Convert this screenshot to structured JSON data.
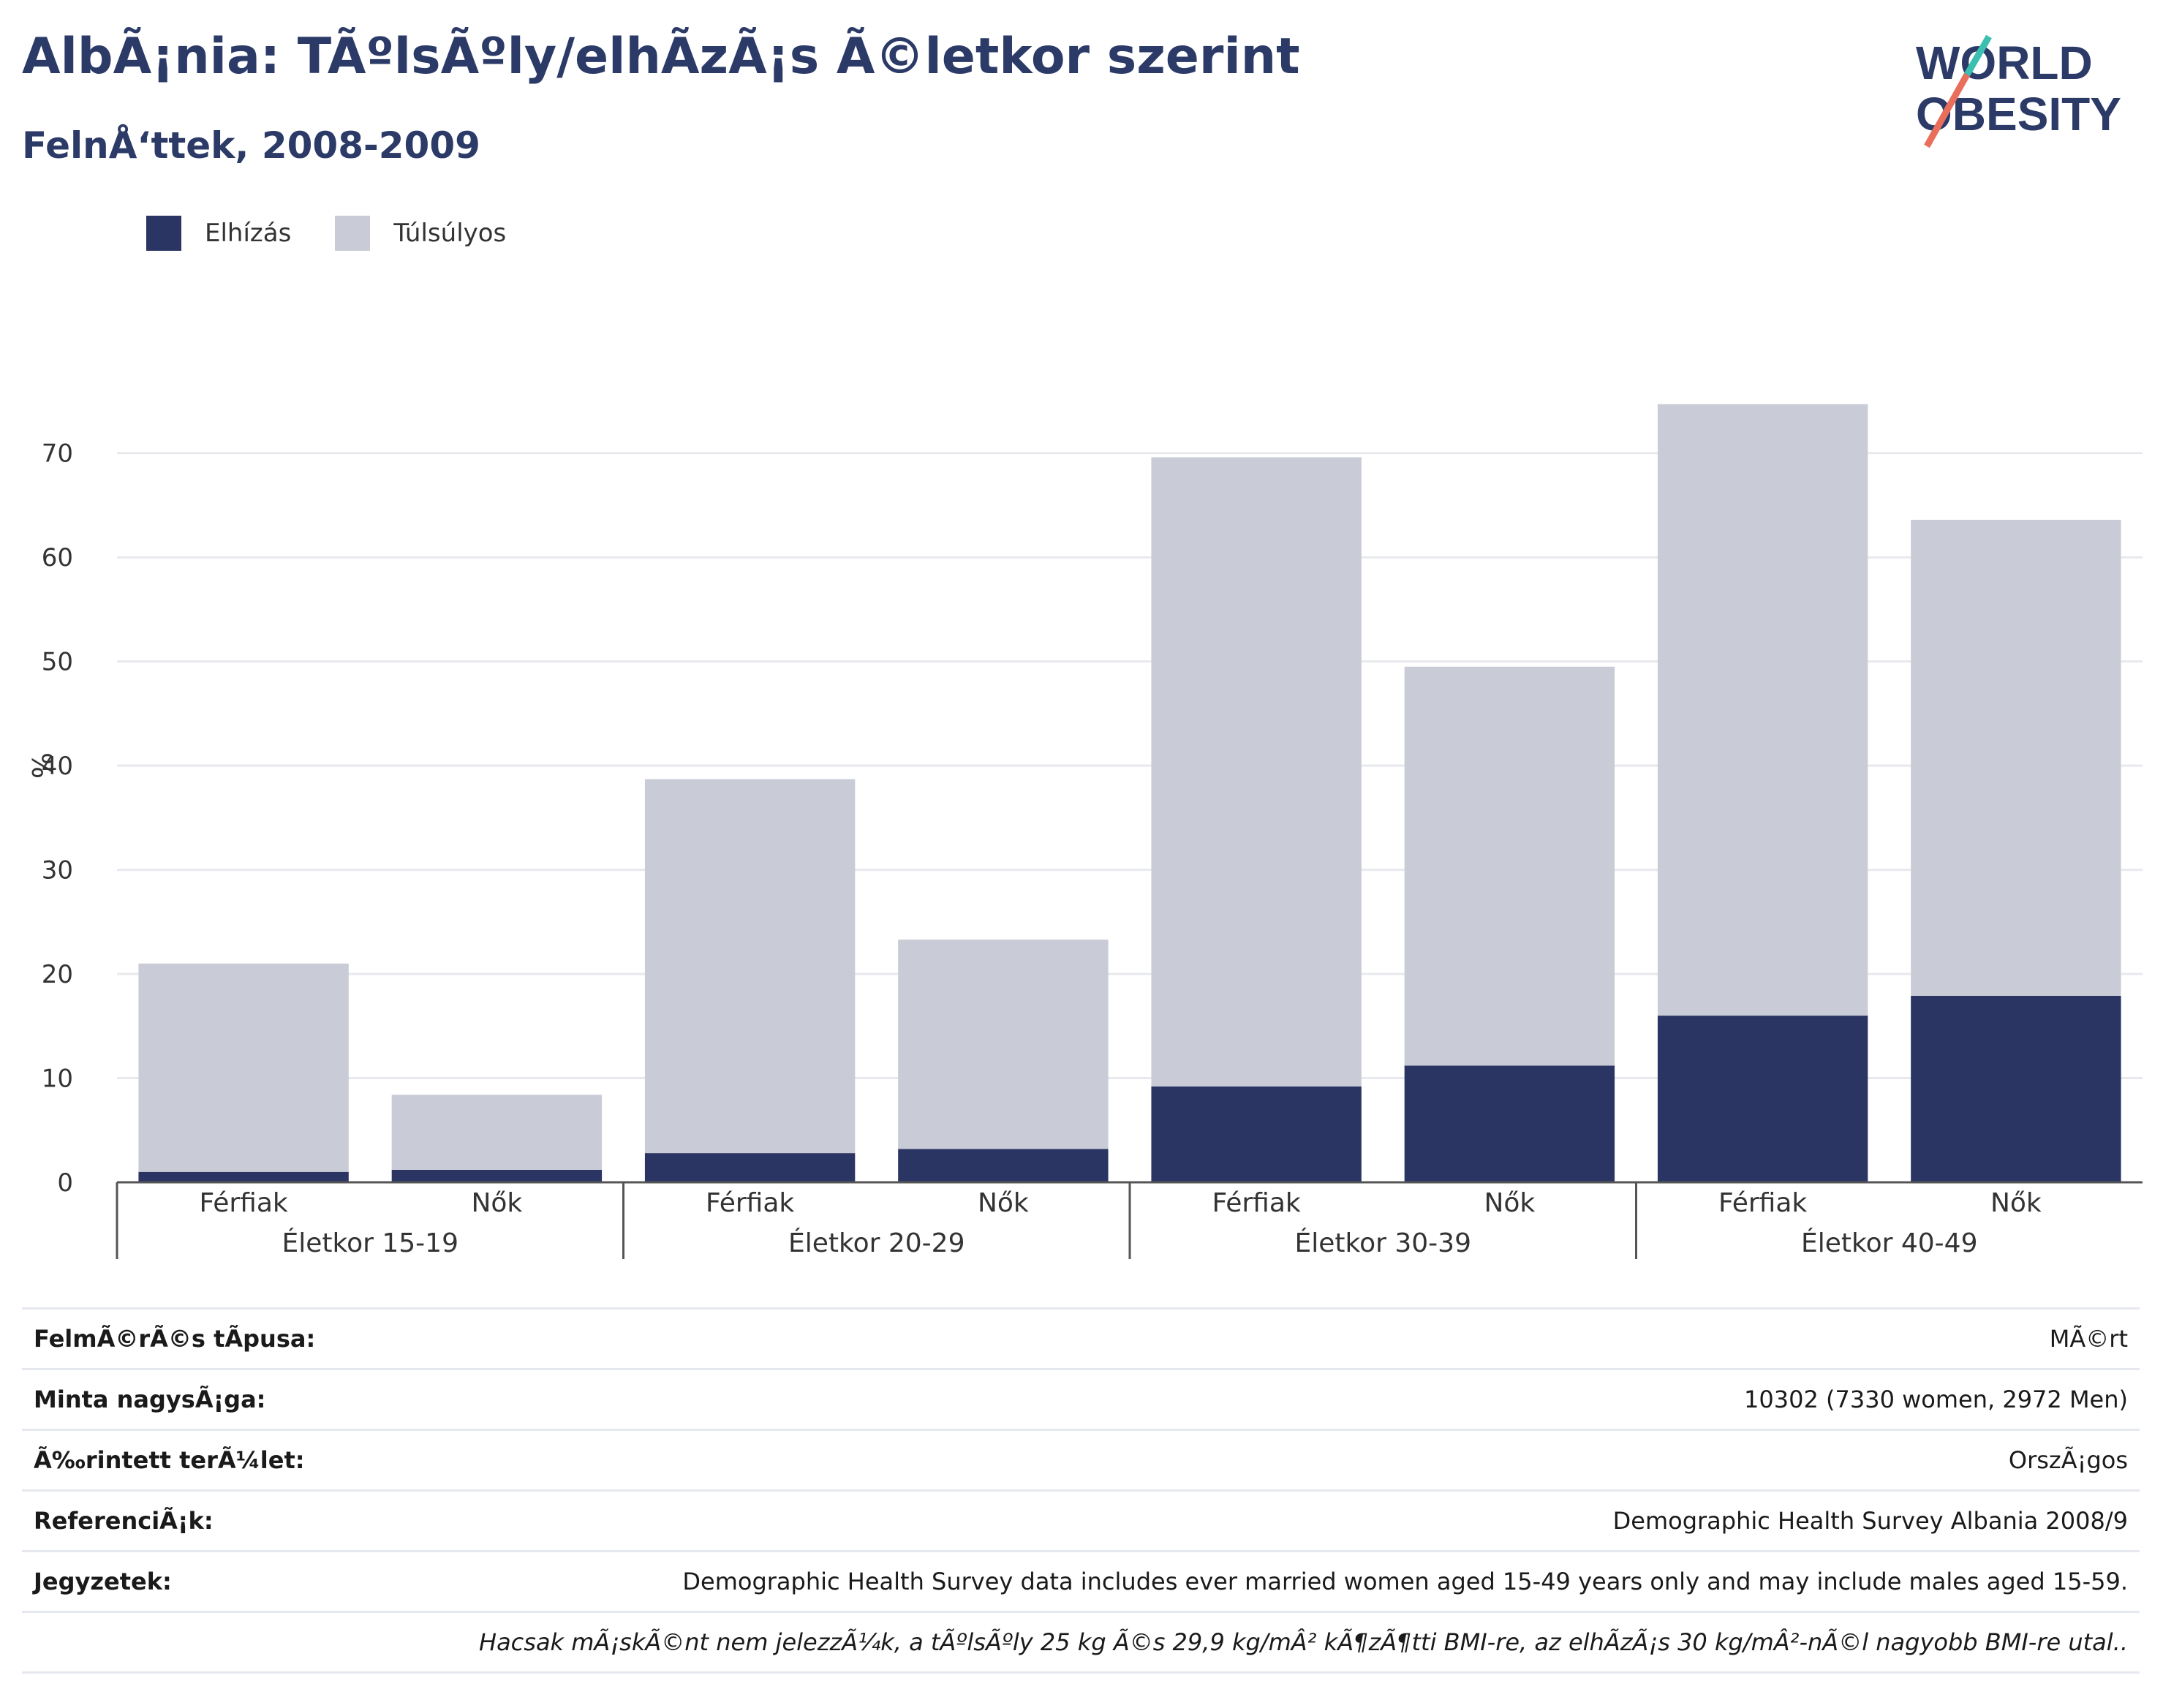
{
  "header": {
    "title": "AlbÃ¡nia: TÃºlsÃºly/elhÃ­zÃ¡s Ã©letkor szerint",
    "subtitle": "FelnÅ‘ttek, 2008-2009",
    "logo_line1": "WORLD",
    "logo_line2": "OBESITY"
  },
  "legend": {
    "items": [
      {
        "label": "Elhízás",
        "color": "#2b3564"
      },
      {
        "label": "Túlsúlyos",
        "color": "#c9ccd7"
      }
    ]
  },
  "chart_data": {
    "type": "bar",
    "stacked": true,
    "ylabel": "%",
    "ylim": [
      0,
      77
    ],
    "yticks": [
      0,
      10,
      20,
      30,
      40,
      50,
      60,
      70
    ],
    "grid": true,
    "legend_position": "top-left",
    "groups": [
      "Életkor 15-19",
      "Életkor 20-29",
      "Életkor 30-39",
      "Életkor 40-49"
    ],
    "categories": [
      "Férfiak",
      "Nők"
    ],
    "series": [
      {
        "name": "Elhízás",
        "color": "#2b3564",
        "values": [
          [
            1.0,
            1.2
          ],
          [
            2.8,
            3.2
          ],
          [
            9.2,
            11.2
          ],
          [
            16.0,
            17.9
          ]
        ]
      },
      {
        "name": "Túlsúlyos",
        "color": "#c9ccd7",
        "values": [
          [
            20.0,
            7.2
          ],
          [
            35.9,
            20.1
          ],
          [
            60.4,
            38.3
          ],
          [
            58.7,
            45.7
          ]
        ]
      }
    ]
  },
  "meta": {
    "rows": [
      {
        "key": "FelmÃ©rÃ©s tÃpusa:",
        "value": "MÃ©rt"
      },
      {
        "key": "Minta nagysÃ¡ga:",
        "value": "10302 (7330 women, 2972 Men)"
      },
      {
        "key": "Ã‰rintett terÃ¼let:",
        "value": "OrszÃ¡gos"
      },
      {
        "key": "ReferenciÃ¡k:",
        "value": "Demographic Health Survey Albania 2008/9"
      },
      {
        "key": "Jegyzetek:",
        "value": "Demographic Health Survey data includes ever married women aged 15-49 years only and may include males aged 15-59."
      }
    ],
    "note": "Hacsak mÃ¡skÃ©nt nem jelezzÃ¼k, a tÃºlsÃºly 25 kg Ã©s 29,9 kg/mÂ² kÃ¶zÃ¶tti BMI-re, az elhÃ­zÃ¡s 30 kg/mÂ²-nÃ©l nagyobb BMI-re utal.."
  }
}
